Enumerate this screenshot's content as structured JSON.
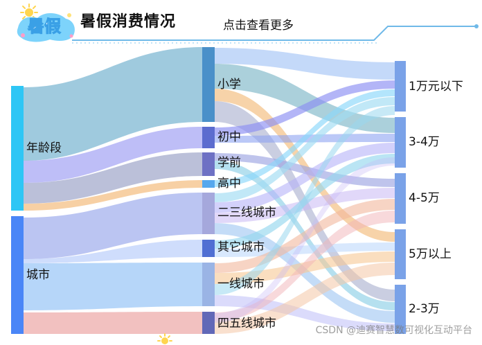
{
  "header": {
    "title": "暑假消费情况",
    "more_label": "点击查看更多",
    "logo_text": "暑假"
  },
  "watermark": "CSDN @迪赛智慧数可视化互动平台",
  "colors": {
    "accent": "#6fb9e8",
    "left_1": "#2ec6f5",
    "left_2": "#4a86f7",
    "mid_primary": "#4a90c9",
    "mid_dark": "#5c6ccf",
    "right_node": "#7aa2e8"
  },
  "chart_data": {
    "type": "sankey",
    "left_nodes": [
      "年龄段",
      "城市"
    ],
    "middle_nodes": [
      "小学",
      "初中",
      "学前",
      "高中",
      "二三线城市",
      "其它城市",
      "一线城市",
      "四五线城市"
    ],
    "right_nodes": [
      "1万元以下",
      "3-4万",
      "4-5万",
      "5万以上",
      "2-3万"
    ]
  }
}
